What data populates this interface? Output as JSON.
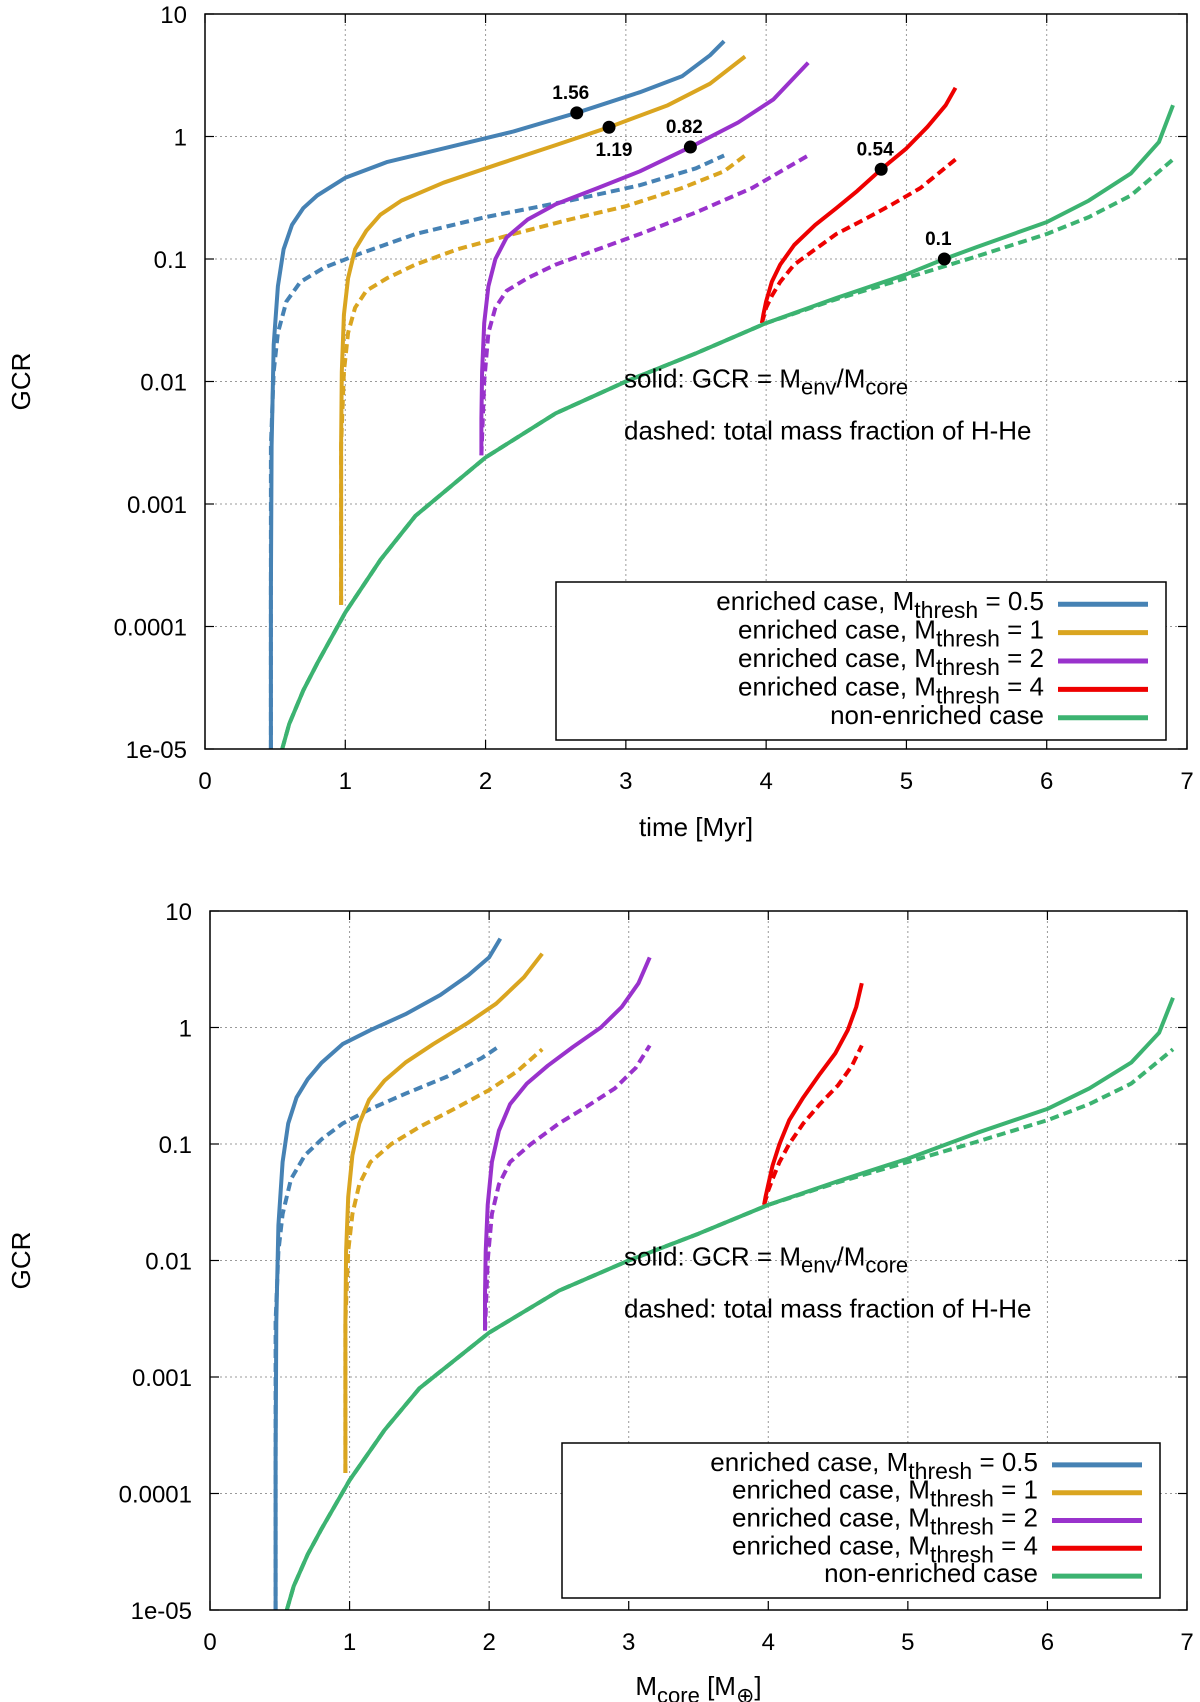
{
  "chart_data": [
    {
      "type": "line",
      "yscale": "log",
      "xlabel": "time [Myr]",
      "ylabel": "GCR",
      "xlim": [
        0,
        7
      ],
      "ylim": [
        1e-05,
        10
      ],
      "xticks": [
        "0",
        "1",
        "2",
        "3",
        "4",
        "5",
        "6",
        "7"
      ],
      "yticks": [
        "1e-05",
        "0.0001",
        "0.001",
        "0.01",
        "0.1",
        "1",
        "10"
      ],
      "annotation_solid": "solid: GCR = M_env/M_core",
      "annotation_dashed": "dashed: total mass fraction of H-He",
      "legend": {
        "position": "bottom-right",
        "entries": [
          {
            "prefix": "enriched case, M",
            "sub": "thresh",
            "suffix": " = 0.5",
            "color": "#4682b4"
          },
          {
            "prefix": "enriched case, M",
            "sub": "thresh",
            "suffix": " = 1",
            "color": "#daa520"
          },
          {
            "prefix": "enriched case, M",
            "sub": "thresh",
            "suffix": " = 2",
            "color": "#9932cc"
          },
          {
            "prefix": "enriched case, M",
            "sub": "thresh",
            "suffix": " = 4",
            "color": "#ee0000"
          },
          {
            "prefix": "non-enriched case",
            "sub": "",
            "suffix": "",
            "color": "#3cb371"
          }
        ]
      },
      "markers": [
        {
          "x": 2.65,
          "y": 1.56,
          "label": "1.56",
          "label_pos": "above"
        },
        {
          "x": 2.88,
          "y": 1.19,
          "label": "1.19",
          "label_pos": "below"
        },
        {
          "x": 3.46,
          "y": 0.82,
          "label": "0.82",
          "label_pos": "above"
        },
        {
          "x": 4.82,
          "y": 0.54,
          "label": "0.54",
          "label_pos": "above"
        },
        {
          "x": 5.27,
          "y": 0.1,
          "label": "0.1",
          "label_pos": "above"
        }
      ],
      "series": [
        {
          "name": "M_thresh = 0.5 solid",
          "color": "#4682b4",
          "style": "solid",
          "x": [
            0.47,
            0.47,
            0.475,
            0.49,
            0.52,
            0.56,
            0.62,
            0.7,
            0.8,
            1.0,
            1.3,
            1.7,
            2.2,
            2.65,
            3.1,
            3.4,
            3.6,
            3.7
          ],
          "y": [
            1e-05,
            0.0002,
            0.003,
            0.02,
            0.06,
            0.12,
            0.19,
            0.26,
            0.33,
            0.46,
            0.62,
            0.8,
            1.1,
            1.56,
            2.3,
            3.1,
            4.6,
            6.0
          ]
        },
        {
          "name": "M_thresh = 0.5 dashed",
          "color": "#4682b4",
          "style": "dashed",
          "x": [
            0.47,
            0.47,
            0.49,
            0.52,
            0.58,
            0.68,
            0.85,
            1.1,
            1.5,
            2.0,
            2.6,
            3.1,
            3.5,
            3.7
          ],
          "y": [
            1e-05,
            0.003,
            0.012,
            0.025,
            0.045,
            0.065,
            0.085,
            0.11,
            0.16,
            0.22,
            0.3,
            0.4,
            0.55,
            0.7
          ]
        },
        {
          "name": "M_thresh = 1 solid",
          "color": "#daa520",
          "style": "solid",
          "x": [
            0.97,
            0.97,
            0.975,
            0.99,
            1.02,
            1.07,
            1.15,
            1.25,
            1.4,
            1.7,
            2.1,
            2.5,
            2.88,
            3.3,
            3.6,
            3.85
          ],
          "y": [
            0.00015,
            0.003,
            0.012,
            0.035,
            0.07,
            0.12,
            0.17,
            0.23,
            0.3,
            0.42,
            0.6,
            0.85,
            1.19,
            1.8,
            2.7,
            4.5
          ]
        },
        {
          "name": "M_thresh = 1 dashed",
          "color": "#daa520",
          "style": "dashed",
          "x": [
            0.97,
            0.97,
            0.99,
            1.02,
            1.07,
            1.15,
            1.3,
            1.5,
            1.8,
            2.2,
            2.6,
            3.0,
            3.4,
            3.7,
            3.85
          ],
          "y": [
            0.00015,
            0.003,
            0.012,
            0.025,
            0.04,
            0.055,
            0.07,
            0.09,
            0.12,
            0.16,
            0.21,
            0.27,
            0.38,
            0.52,
            0.7
          ]
        },
        {
          "name": "M_thresh = 2 solid",
          "color": "#9932cc",
          "style": "solid",
          "x": [
            1.97,
            1.97,
            1.975,
            1.99,
            2.02,
            2.07,
            2.15,
            2.3,
            2.5,
            2.8,
            3.1,
            3.46,
            3.8,
            4.05,
            4.3
          ],
          "y": [
            0.0025,
            0.005,
            0.012,
            0.03,
            0.06,
            0.1,
            0.15,
            0.21,
            0.28,
            0.38,
            0.52,
            0.82,
            1.3,
            2.0,
            4.0
          ]
        },
        {
          "name": "M_thresh = 2 dashed",
          "color": "#9932cc",
          "style": "dashed",
          "x": [
            1.97,
            1.99,
            2.02,
            2.07,
            2.15,
            2.3,
            2.5,
            2.8,
            3.1,
            3.5,
            3.9,
            4.3
          ],
          "y": [
            0.0025,
            0.01,
            0.025,
            0.04,
            0.055,
            0.07,
            0.09,
            0.12,
            0.16,
            0.24,
            0.38,
            0.7
          ]
        },
        {
          "name": "M_thresh = 4 solid",
          "color": "#ee0000",
          "style": "solid",
          "x": [
            3.97,
            3.98,
            4.0,
            4.04,
            4.1,
            4.2,
            4.35,
            4.5,
            4.65,
            4.82,
            5.0,
            5.15,
            5.28,
            5.35
          ],
          "y": [
            0.03,
            0.035,
            0.045,
            0.065,
            0.09,
            0.13,
            0.19,
            0.26,
            0.36,
            0.54,
            0.8,
            1.2,
            1.8,
            2.5
          ]
        },
        {
          "name": "M_thresh = 4 dashed",
          "color": "#ee0000",
          "style": "dashed",
          "x": [
            3.97,
            3.98,
            4.0,
            4.04,
            4.1,
            4.2,
            4.35,
            4.5,
            4.7,
            4.9,
            5.1,
            5.35
          ],
          "y": [
            0.03,
            0.033,
            0.04,
            0.05,
            0.065,
            0.09,
            0.12,
            0.16,
            0.21,
            0.28,
            0.38,
            0.65
          ]
        },
        {
          "name": "non-enriched solid",
          "color": "#3cb371",
          "style": "solid",
          "x": [
            0.55,
            0.6,
            0.7,
            0.8,
            1.0,
            1.25,
            1.5,
            2.0,
            2.5,
            3.0,
            3.5,
            4.0,
            4.5,
            5.0,
            5.27,
            5.5,
            6.0,
            6.3,
            6.6,
            6.8,
            6.9
          ],
          "y": [
            1e-05,
            1.6e-05,
            3e-05,
            5e-05,
            0.00013,
            0.00035,
            0.0008,
            0.0024,
            0.0055,
            0.01,
            0.017,
            0.03,
            0.048,
            0.075,
            0.1,
            0.125,
            0.2,
            0.3,
            0.5,
            0.9,
            1.8
          ]
        },
        {
          "name": "non-enriched dashed",
          "color": "#3cb371",
          "style": "dashed",
          "x": [
            0.55,
            0.6,
            0.7,
            0.8,
            1.0,
            1.25,
            1.5,
            2.0,
            2.5,
            3.0,
            3.5,
            4.0,
            4.5,
            5.0,
            5.5,
            6.0,
            6.3,
            6.6,
            6.9
          ],
          "y": [
            1e-05,
            1.6e-05,
            3e-05,
            5e-05,
            0.00013,
            0.00035,
            0.0008,
            0.0024,
            0.0055,
            0.01,
            0.017,
            0.03,
            0.047,
            0.07,
            0.105,
            0.16,
            0.22,
            0.33,
            0.65
          ]
        }
      ]
    },
    {
      "type": "line",
      "yscale": "log",
      "xlabel": "M_core [M_⊕]",
      "ylabel": "GCR",
      "xlim": [
        0,
        7
      ],
      "ylim": [
        1e-05,
        10
      ],
      "xticks": [
        "0",
        "1",
        "2",
        "3",
        "4",
        "5",
        "6",
        "7"
      ],
      "yticks": [
        "1e-05",
        "0.0001",
        "0.001",
        "0.01",
        "0.1",
        "1",
        "10"
      ],
      "annotation_solid": "solid: GCR = M_env/M_core",
      "annotation_dashed": "dashed: total mass fraction of H-He",
      "legend": {
        "position": "bottom-right",
        "entries": [
          {
            "prefix": "enriched case, M",
            "sub": "thresh",
            "suffix": " = 0.5",
            "color": "#4682b4"
          },
          {
            "prefix": "enriched case, M",
            "sub": "thresh",
            "suffix": " = 1",
            "color": "#daa520"
          },
          {
            "prefix": "enriched case, M",
            "sub": "thresh",
            "suffix": " = 2",
            "color": "#9932cc"
          },
          {
            "prefix": "enriched case, M",
            "sub": "thresh",
            "suffix": " = 4",
            "color": "#ee0000"
          },
          {
            "prefix": "non-enriched case",
            "sub": "",
            "suffix": "",
            "color": "#3cb371"
          }
        ]
      },
      "series": [
        {
          "name": "M_thresh = 0.5 solid",
          "color": "#4682b4",
          "style": "solid",
          "x": [
            0.47,
            0.47,
            0.475,
            0.49,
            0.52,
            0.56,
            0.62,
            0.7,
            0.8,
            0.95,
            1.15,
            1.4,
            1.65,
            1.85,
            2.0,
            2.08
          ],
          "y": [
            1e-05,
            0.0002,
            0.003,
            0.02,
            0.07,
            0.15,
            0.25,
            0.36,
            0.5,
            0.72,
            0.95,
            1.3,
            1.9,
            2.8,
            4.0,
            5.8
          ]
        },
        {
          "name": "M_thresh = 0.5 dashed",
          "color": "#4682b4",
          "style": "dashed",
          "x": [
            0.47,
            0.47,
            0.49,
            0.52,
            0.58,
            0.68,
            0.8,
            0.95,
            1.15,
            1.4,
            1.7,
            1.95,
            2.08
          ],
          "y": [
            1e-05,
            0.003,
            0.012,
            0.025,
            0.05,
            0.08,
            0.11,
            0.15,
            0.2,
            0.27,
            0.38,
            0.55,
            0.7
          ]
        },
        {
          "name": "M_thresh = 1 solid",
          "color": "#daa520",
          "style": "solid",
          "x": [
            0.97,
            0.97,
            0.975,
            0.99,
            1.02,
            1.07,
            1.14,
            1.25,
            1.4,
            1.6,
            1.85,
            2.05,
            2.25,
            2.38
          ],
          "y": [
            0.00015,
            0.003,
            0.012,
            0.035,
            0.08,
            0.15,
            0.24,
            0.35,
            0.5,
            0.72,
            1.1,
            1.6,
            2.7,
            4.3
          ]
        },
        {
          "name": "M_thresh = 1 dashed",
          "color": "#daa520",
          "style": "dashed",
          "x": [
            0.97,
            0.97,
            0.99,
            1.02,
            1.07,
            1.15,
            1.3,
            1.5,
            1.75,
            2.0,
            2.2,
            2.38
          ],
          "y": [
            0.00015,
            0.003,
            0.012,
            0.025,
            0.045,
            0.07,
            0.1,
            0.14,
            0.2,
            0.29,
            0.42,
            0.65
          ]
        },
        {
          "name": "M_thresh = 2 solid",
          "color": "#9932cc",
          "style": "solid",
          "x": [
            1.97,
            1.97,
            1.975,
            1.99,
            2.02,
            2.07,
            2.15,
            2.27,
            2.42,
            2.6,
            2.8,
            2.95,
            3.07,
            3.15
          ],
          "y": [
            0.0025,
            0.005,
            0.012,
            0.03,
            0.07,
            0.13,
            0.22,
            0.33,
            0.47,
            0.68,
            1.0,
            1.5,
            2.4,
            4.0
          ]
        },
        {
          "name": "M_thresh = 2 dashed",
          "color": "#9932cc",
          "style": "dashed",
          "x": [
            1.97,
            1.99,
            2.02,
            2.07,
            2.15,
            2.3,
            2.5,
            2.7,
            2.9,
            3.05,
            3.15
          ],
          "y": [
            0.0025,
            0.01,
            0.025,
            0.045,
            0.07,
            0.1,
            0.15,
            0.21,
            0.3,
            0.45,
            0.7
          ]
        },
        {
          "name": "M_thresh = 4 solid",
          "color": "#ee0000",
          "style": "solid",
          "x": [
            3.97,
            3.98,
            4.0,
            4.03,
            4.08,
            4.15,
            4.25,
            4.37,
            4.48,
            4.57,
            4.63,
            4.67
          ],
          "y": [
            0.03,
            0.035,
            0.045,
            0.065,
            0.1,
            0.16,
            0.25,
            0.4,
            0.6,
            0.95,
            1.5,
            2.4
          ]
        },
        {
          "name": "M_thresh = 4 dashed",
          "color": "#ee0000",
          "style": "dashed",
          "x": [
            3.97,
            3.98,
            4.0,
            4.03,
            4.08,
            4.15,
            4.25,
            4.37,
            4.5,
            4.6,
            4.67
          ],
          "y": [
            0.03,
            0.033,
            0.04,
            0.05,
            0.07,
            0.1,
            0.15,
            0.22,
            0.32,
            0.47,
            0.7
          ]
        },
        {
          "name": "non-enriched solid",
          "color": "#3cb371",
          "style": "solid",
          "x": [
            0.55,
            0.6,
            0.7,
            0.8,
            1.0,
            1.25,
            1.5,
            2.0,
            2.5,
            3.0,
            3.5,
            4.0,
            4.5,
            5.0,
            5.5,
            6.0,
            6.3,
            6.6,
            6.8,
            6.9
          ],
          "y": [
            1e-05,
            1.6e-05,
            3e-05,
            5e-05,
            0.00013,
            0.00035,
            0.0008,
            0.0024,
            0.0055,
            0.01,
            0.017,
            0.03,
            0.048,
            0.075,
            0.125,
            0.2,
            0.3,
            0.5,
            0.9,
            1.8
          ]
        },
        {
          "name": "non-enriched dashed",
          "color": "#3cb371",
          "style": "dashed",
          "x": [
            0.55,
            0.6,
            0.7,
            0.8,
            1.0,
            1.25,
            1.5,
            2.0,
            2.5,
            3.0,
            3.5,
            4.0,
            4.5,
            5.0,
            5.5,
            6.0,
            6.3,
            6.6,
            6.9
          ],
          "y": [
            1e-05,
            1.6e-05,
            3e-05,
            5e-05,
            0.00013,
            0.00035,
            0.0008,
            0.0024,
            0.0055,
            0.01,
            0.017,
            0.03,
            0.047,
            0.07,
            0.105,
            0.16,
            0.22,
            0.33,
            0.65
          ]
        }
      ]
    }
  ]
}
